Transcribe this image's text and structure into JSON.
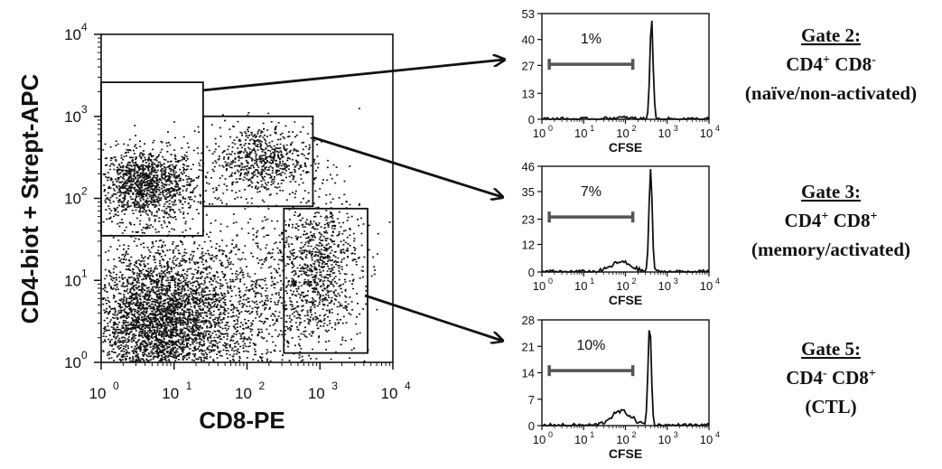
{
  "chart_data": [
    {
      "type": "scatter",
      "title": "",
      "xlabel": "CD8-PE",
      "ylabel": "CD4-biot + Strept-APC",
      "x_scale": "log",
      "y_scale": "log",
      "xlim": [
        1,
        10000
      ],
      "ylim": [
        1,
        10000
      ],
      "x_ticks": [
        "10",
        "10",
        "10",
        "10",
        "10"
      ],
      "x_tick_exp": [
        "0",
        "1",
        "2",
        "3",
        "4"
      ],
      "y_ticks": [
        "10",
        "10",
        "10",
        "10",
        "10"
      ],
      "y_tick_exp": [
        "0",
        "1",
        "2",
        "3",
        "4"
      ],
      "populations": [
        {
          "center": [
            4,
            150
          ],
          "spread": [
            0.35,
            0.22
          ],
          "count": 1300
        },
        {
          "center": [
            150,
            300
          ],
          "spread": [
            0.35,
            0.22
          ],
          "count": 700
        },
        {
          "center": [
            6,
            3
          ],
          "spread": [
            0.45,
            0.45
          ],
          "count": 3200
        },
        {
          "center": [
            900,
            15
          ],
          "spread": [
            0.3,
            0.45
          ],
          "count": 900
        },
        {
          "center": [
            60,
            5
          ],
          "spread": [
            0.6,
            0.5
          ],
          "count": 1100
        }
      ],
      "gates": [
        {
          "name": "gate-2",
          "x": [
            1,
            25
          ],
          "y": [
            35,
            2600
          ]
        },
        {
          "name": "gate-3",
          "x": [
            25,
            800
          ],
          "y": [
            80,
            1000
          ]
        },
        {
          "name": "gate-5",
          "x": [
            320,
            4500
          ],
          "y": [
            1.3,
            75
          ]
        }
      ]
    },
    {
      "type": "histogram",
      "xlabel": "CFSE",
      "x_scale": "log",
      "xlim": [
        1,
        10000
      ],
      "y_ticks": [
        "0",
        "13",
        "27",
        "40",
        "53"
      ],
      "ylim": [
        0,
        53
      ],
      "peak_x": 420,
      "peak_y": 50,
      "divided_fraction": 0.01,
      "marker_label": "1%",
      "marker_range": [
        1.5,
        150
      ]
    },
    {
      "type": "histogram",
      "xlabel": "CFSE",
      "x_scale": "log",
      "xlim": [
        1,
        10000
      ],
      "y_ticks": [
        "0",
        "12",
        "23",
        "35",
        "46"
      ],
      "ylim": [
        0,
        46
      ],
      "peak_x": 400,
      "peak_y": 44,
      "divided_fraction": 0.07,
      "marker_label": "7%",
      "marker_range": [
        1.5,
        150
      ]
    },
    {
      "type": "histogram",
      "xlabel": "CFSE",
      "x_scale": "log",
      "xlim": [
        1,
        10000
      ],
      "y_ticks": [
        "0",
        "7",
        "14",
        "21",
        "28"
      ],
      "ylim": [
        0,
        28
      ],
      "peak_x": 380,
      "peak_y": 27,
      "divided_fraction": 0.1,
      "marker_label": "10%",
      "marker_range": [
        1.5,
        150
      ]
    }
  ],
  "labels": {
    "gate2": {
      "title": "Gate 2:",
      "line1a": "CD4",
      "line1a_sup": "+",
      "line1b": " CD8",
      "line1b_sup": "-",
      "line2": "(naïve/non-activated)"
    },
    "gate3": {
      "title": "Gate 3:",
      "line1a": "CD4",
      "line1a_sup": "+",
      "line1b": " CD8",
      "line1b_sup": "+",
      "line2": "(memory/activated)"
    },
    "gate5": {
      "title": "Gate 5:",
      "line1a": "CD4",
      "line1a_sup": "-",
      "line1b": " CD8",
      "line1b_sup": "+",
      "line2": "(CTL)"
    }
  }
}
